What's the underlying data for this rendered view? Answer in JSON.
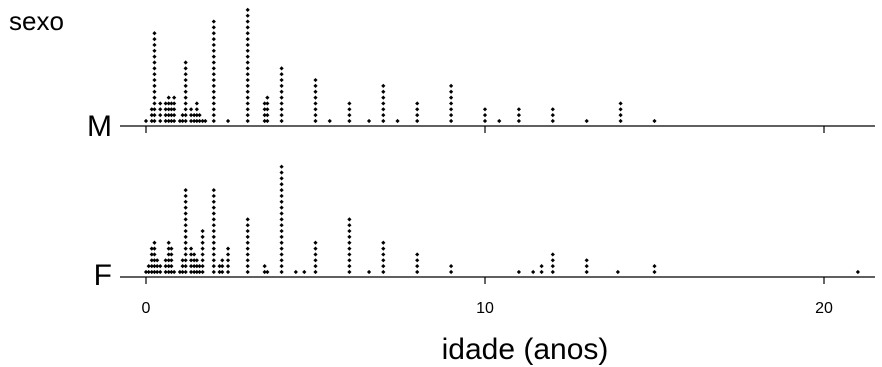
{
  "chart_data": {
    "type": "scatter",
    "subtype": "stacked-dot-plot",
    "ylabel": "sexo",
    "xlabel": "idade (anos)",
    "xlim": [
      0,
      21.3
    ],
    "x_ticks": [
      0,
      10,
      20
    ],
    "grid": false,
    "marker_color": "#000000",
    "series": [
      {
        "name": "M",
        "stacks": [
          {
            "x": 0,
            "count": 1
          },
          {
            "x": 0.17,
            "count": 3
          },
          {
            "x": 0.25,
            "count": 16
          },
          {
            "x": 0.42,
            "count": 4
          },
          {
            "x": 0.58,
            "count": 4
          },
          {
            "x": 0.67,
            "count": 5
          },
          {
            "x": 0.75,
            "count": 4
          },
          {
            "x": 0.83,
            "count": 5
          },
          {
            "x": 1,
            "count": 1
          },
          {
            "x": 1.08,
            "count": 2
          },
          {
            "x": 1.17,
            "count": 11
          },
          {
            "x": 1.33,
            "count": 3
          },
          {
            "x": 1.42,
            "count": 2
          },
          {
            "x": 1.5,
            "count": 4
          },
          {
            "x": 1.58,
            "count": 2
          },
          {
            "x": 1.67,
            "count": 1
          },
          {
            "x": 1.75,
            "count": 1
          },
          {
            "x": 2,
            "count": 18
          },
          {
            "x": 2.42,
            "count": 1
          },
          {
            "x": 3,
            "count": 20
          },
          {
            "x": 3.5,
            "count": 4
          },
          {
            "x": 3.58,
            "count": 5
          },
          {
            "x": 4,
            "count": 10
          },
          {
            "x": 5,
            "count": 8
          },
          {
            "x": 5.42,
            "count": 1
          },
          {
            "x": 6,
            "count": 4
          },
          {
            "x": 6.58,
            "count": 1
          },
          {
            "x": 7,
            "count": 7
          },
          {
            "x": 7.42,
            "count": 1
          },
          {
            "x": 8,
            "count": 4
          },
          {
            "x": 9,
            "count": 7
          },
          {
            "x": 10,
            "count": 3
          },
          {
            "x": 10.42,
            "count": 1
          },
          {
            "x": 11,
            "count": 3
          },
          {
            "x": 12,
            "count": 3
          },
          {
            "x": 13,
            "count": 1
          },
          {
            "x": 14,
            "count": 4
          },
          {
            "x": 15,
            "count": 1
          }
        ]
      },
      {
        "name": "F",
        "stacks": [
          {
            "x": 0,
            "count": 1
          },
          {
            "x": 0.08,
            "count": 2
          },
          {
            "x": 0.17,
            "count": 5
          },
          {
            "x": 0.25,
            "count": 6
          },
          {
            "x": 0.33,
            "count": 3
          },
          {
            "x": 0.42,
            "count": 2
          },
          {
            "x": 0.58,
            "count": 3
          },
          {
            "x": 0.67,
            "count": 6
          },
          {
            "x": 0.75,
            "count": 5
          },
          {
            "x": 0.83,
            "count": 1
          },
          {
            "x": 1,
            "count": 1
          },
          {
            "x": 1.08,
            "count": 3
          },
          {
            "x": 1.17,
            "count": 15
          },
          {
            "x": 1.33,
            "count": 5
          },
          {
            "x": 1.42,
            "count": 4
          },
          {
            "x": 1.5,
            "count": 3
          },
          {
            "x": 1.58,
            "count": 2
          },
          {
            "x": 1.67,
            "count": 8
          },
          {
            "x": 2,
            "count": 15
          },
          {
            "x": 2.17,
            "count": 2
          },
          {
            "x": 2.25,
            "count": 3
          },
          {
            "x": 2.42,
            "count": 5
          },
          {
            "x": 3,
            "count": 10
          },
          {
            "x": 3.5,
            "count": 2
          },
          {
            "x": 3.58,
            "count": 1
          },
          {
            "x": 4,
            "count": 19
          },
          {
            "x": 4.42,
            "count": 1
          },
          {
            "x": 4.67,
            "count": 1
          },
          {
            "x": 5,
            "count": 6
          },
          {
            "x": 6,
            "count": 10
          },
          {
            "x": 6.58,
            "count": 1
          },
          {
            "x": 7,
            "count": 6
          },
          {
            "x": 8,
            "count": 4
          },
          {
            "x": 9,
            "count": 2
          },
          {
            "x": 11,
            "count": 1
          },
          {
            "x": 11.42,
            "count": 1
          },
          {
            "x": 11.67,
            "count": 2
          },
          {
            "x": 12,
            "count": 4
          },
          {
            "x": 13,
            "count": 3
          },
          {
            "x": 13.92,
            "count": 1
          },
          {
            "x": 15,
            "count": 2
          },
          {
            "x": 21,
            "count": 1
          }
        ]
      }
    ]
  }
}
